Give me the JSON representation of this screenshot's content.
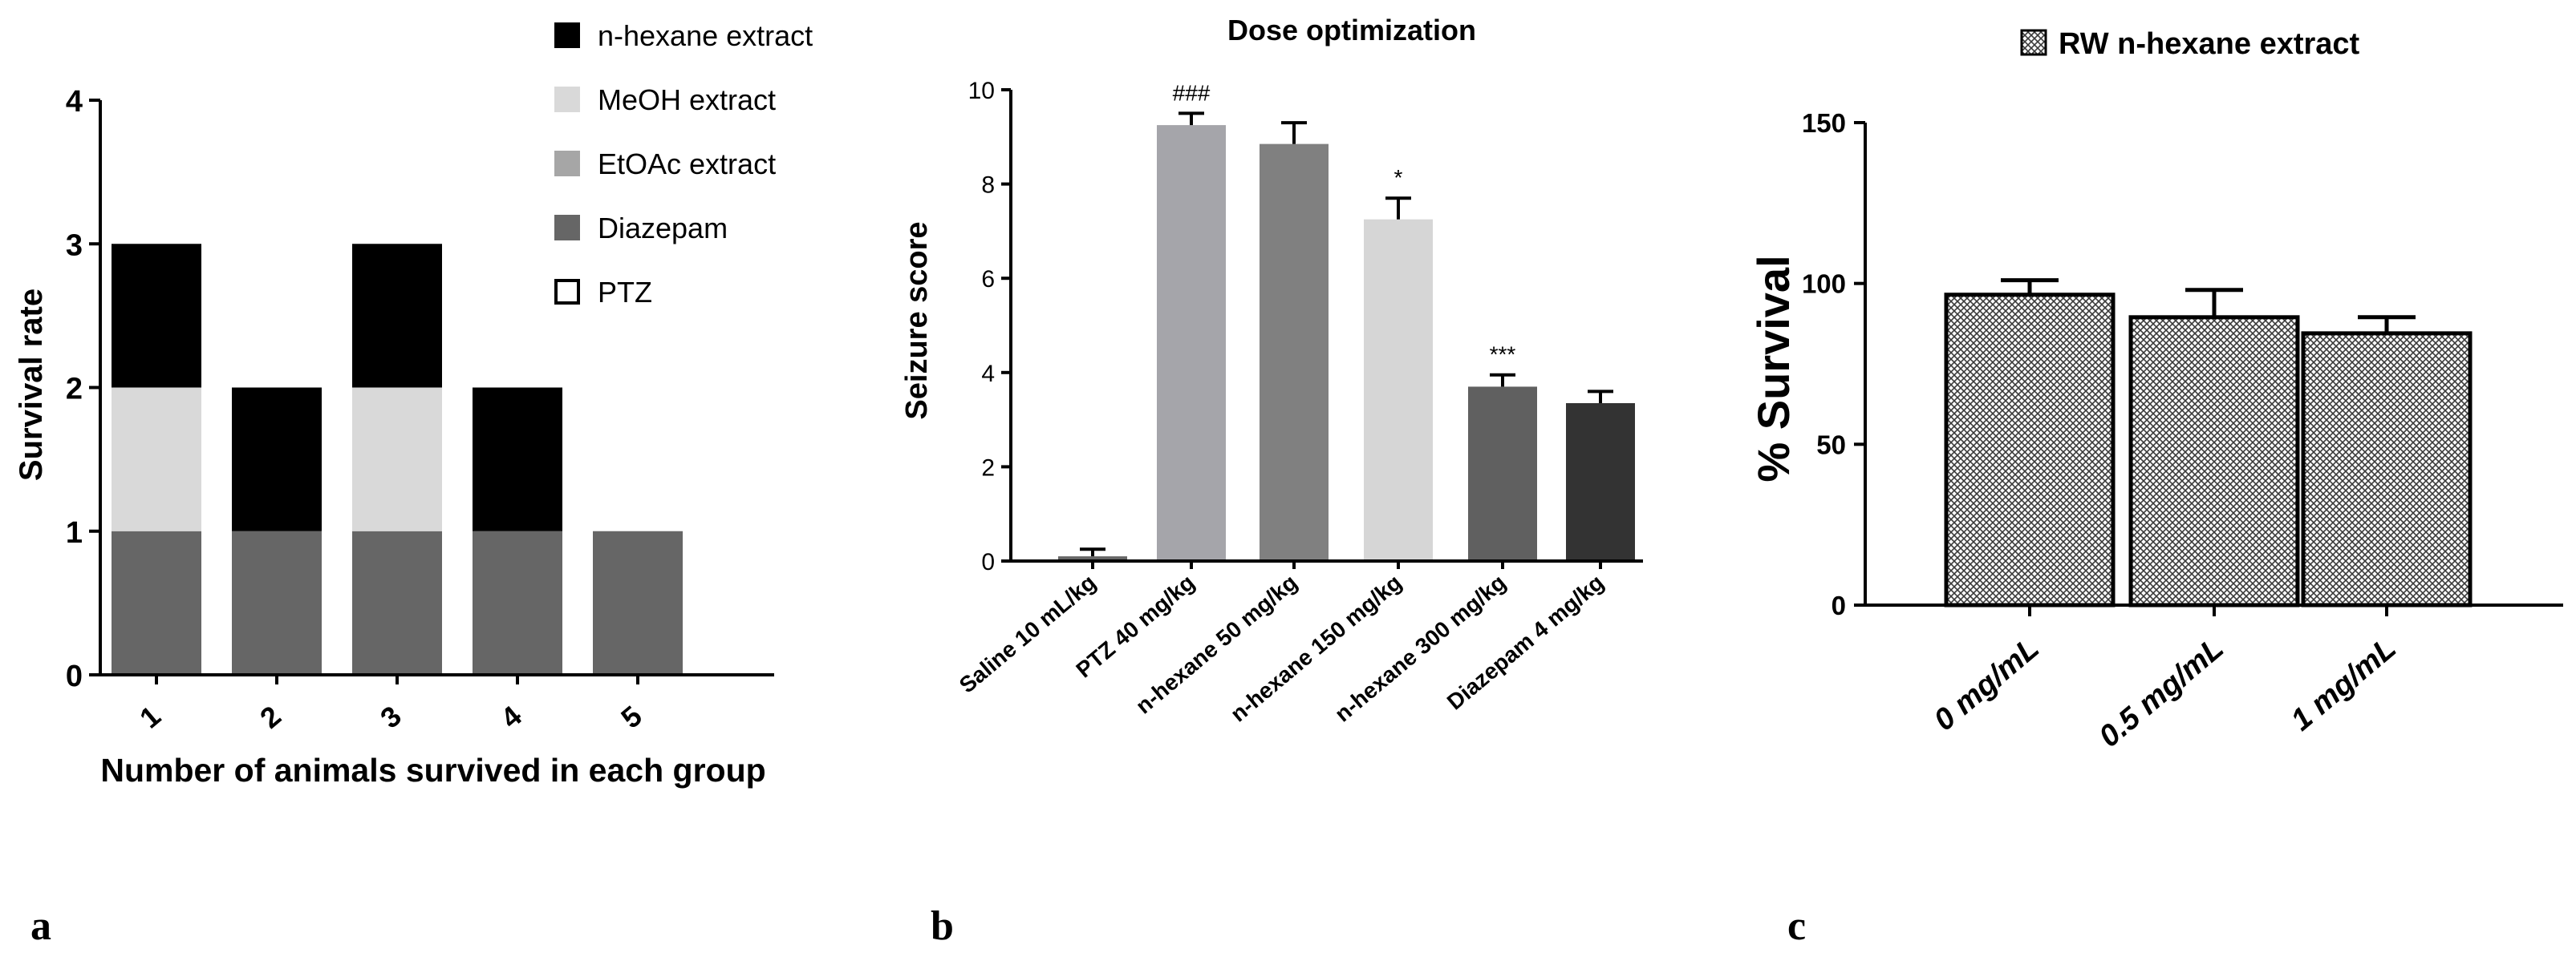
{
  "panel_labels": [
    "a",
    "b",
    "c"
  ],
  "chart_data": [
    {
      "type": "bar",
      "stacked": true,
      "title": "",
      "xlabel": "Number of animals survived in each group",
      "ylabel": "Survival rate",
      "categories": [
        "1",
        "2",
        "3",
        "4",
        "5"
      ],
      "ylim": [
        0,
        4
      ],
      "yticks": [
        0,
        1,
        2,
        3,
        4
      ],
      "series": [
        {
          "name": "Diazepam",
          "color": "#666666",
          "values": [
            1,
            1,
            1,
            1,
            1
          ]
        },
        {
          "name": "EtOAc extract",
          "color": "#a6a6a6",
          "values": [
            0,
            0,
            0,
            0,
            0
          ]
        },
        {
          "name": "MeOH extract",
          "color": "#d9d9d9",
          "values": [
            1,
            0,
            1,
            0,
            0
          ]
        },
        {
          "name": "n-hexane extract",
          "color": "#000000",
          "values": [
            1,
            1,
            1,
            1,
            0
          ]
        },
        {
          "name": "PTZ",
          "color": "#ffffff",
          "values": [
            0,
            0,
            0,
            0,
            0
          ]
        }
      ],
      "legend": [
        "n-hexane extract",
        "MeOH extract",
        "EtOAc extract",
        "Diazepam",
        "PTZ"
      ],
      "legend_position": "top-right"
    },
    {
      "type": "bar",
      "title": "Dose optimization",
      "xlabel": "",
      "ylabel": "Seizure score",
      "categories": [
        "Saline 10 mL/kg",
        "PTZ 40 mg/kg",
        "n-hexane 50 mg/kg",
        "n-hexane 150 mg/kg",
        "n-hexane 300 mg/kg",
        "Diazepam 4 mg/kg"
      ],
      "values": [
        0.1,
        9.25,
        8.85,
        7.25,
        3.7,
        3.35
      ],
      "errors": [
        0.15,
        0.25,
        0.45,
        0.45,
        0.25,
        0.25
      ],
      "colors": [
        "#666666",
        "#a5a5aa",
        "#808080",
        "#d6d6d6",
        "#606060",
        "#333333"
      ],
      "annotations": [
        "",
        "###",
        "",
        "*",
        "***",
        ""
      ],
      "ylim": [
        0,
        10
      ],
      "yticks": [
        0,
        2,
        4,
        6,
        8,
        10
      ]
    },
    {
      "type": "bar",
      "title": "",
      "xlabel": "",
      "ylabel": "% Survival",
      "categories": [
        "0 mg/mL",
        "0.5 mg/mL",
        "1 mg/mL"
      ],
      "values": [
        96.5,
        89.5,
        84.5
      ],
      "errors": [
        4.5,
        8.5,
        5.0
      ],
      "ylim": [
        0,
        150
      ],
      "yticks": [
        0,
        50,
        100,
        150
      ],
      "legend": [
        "RW n-hexane extract"
      ],
      "legend_position": "top"
    }
  ]
}
